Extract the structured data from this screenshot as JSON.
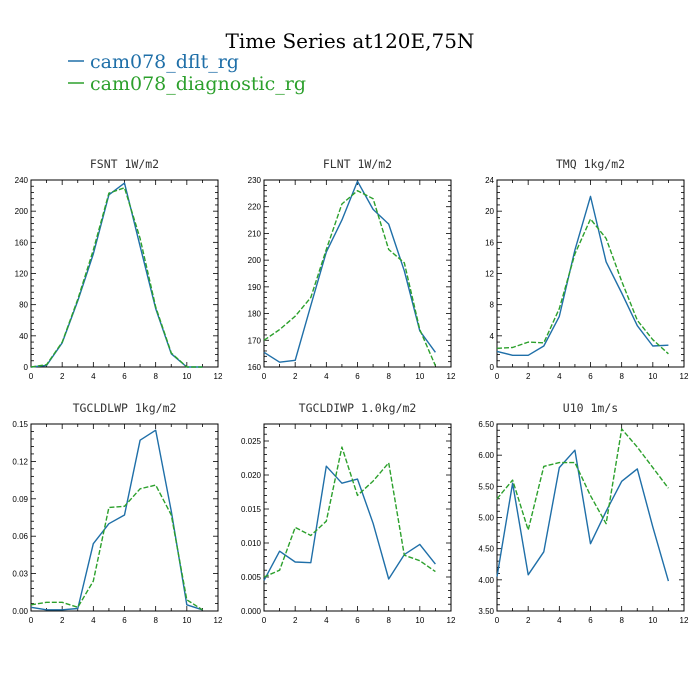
{
  "title": "Time Series at120E,75N",
  "colors": {
    "dflt": "#1f6fa8",
    "diag": "#2ca02c"
  },
  "legend": [
    {
      "name": "cam078_dflt_rg",
      "color": "#1f6fa8"
    },
    {
      "name": "cam078_diagnostic_rg",
      "color": "#2ca02c"
    }
  ],
  "chart_data": [
    {
      "type": "line",
      "title": "FSNT  1W/m2",
      "x": [
        0,
        1,
        2,
        3,
        4,
        5,
        6,
        7,
        8,
        9,
        10,
        11
      ],
      "xlim": [
        0,
        12
      ],
      "xticks": [
        0,
        2,
        4,
        6,
        8,
        10,
        12
      ],
      "xtick_labels": [
        "0",
        "2",
        "4",
        "6",
        "8",
        "10",
        "12"
      ],
      "ylim": [
        0,
        240
      ],
      "yticks": [
        0,
        40,
        80,
        120,
        160,
        200,
        240
      ],
      "ytick_labels": [
        "0",
        "40",
        "80",
        "120",
        "160",
        "200",
        "240"
      ],
      "series": [
        {
          "name": "cam078_dflt_rg",
          "values": [
            0,
            2,
            31,
            85,
            145,
            221,
            236,
            155,
            75,
            17,
            0,
            0
          ]
        },
        {
          "name": "cam078_diagnostic_rg",
          "values": [
            0,
            3,
            32,
            87,
            150,
            223,
            230,
            165,
            77,
            18,
            0,
            0
          ]
        }
      ]
    },
    {
      "type": "line",
      "title": "FLNT  1W/m2",
      "x": [
        0,
        1,
        2,
        3,
        4,
        5,
        6,
        7,
        8,
        9,
        10,
        11
      ],
      "xlim": [
        0,
        12
      ],
      "xticks": [
        0,
        2,
        4,
        6,
        8,
        10,
        12
      ],
      "xtick_labels": [
        "0",
        "2",
        "4",
        "6",
        "8",
        "10",
        "12"
      ],
      "ylim": [
        160,
        230
      ],
      "yticks": [
        160,
        170,
        180,
        190,
        200,
        210,
        220,
        230
      ],
      "ytick_labels": [
        "160",
        "170",
        "180",
        "190",
        "200",
        "210",
        "220",
        "230"
      ],
      "series": [
        {
          "name": "cam078_dflt_rg",
          "values": [
            165.5,
            161.8,
            162.5,
            183,
            203,
            215,
            229.5,
            219,
            213.5,
            196,
            173.5,
            165.5
          ]
        },
        {
          "name": "cam078_diagnostic_rg",
          "values": [
            170,
            174,
            179,
            186,
            204,
            221,
            226,
            223,
            204,
            199,
            174,
            160.5
          ]
        }
      ]
    },
    {
      "type": "line",
      "title": "TMQ  1kg/m2",
      "x": [
        0,
        1,
        2,
        3,
        4,
        5,
        6,
        7,
        8,
        9,
        10,
        11
      ],
      "xlim": [
        0,
        12
      ],
      "xticks": [
        0,
        2,
        4,
        6,
        8,
        10,
        12
      ],
      "xtick_labels": [
        "0",
        "2",
        "4",
        "6",
        "8",
        "10",
        "12"
      ],
      "ylim": [
        0,
        24
      ],
      "yticks": [
        0,
        4,
        8,
        12,
        16,
        20,
        24
      ],
      "ytick_labels": [
        "0",
        "4",
        "8",
        "12",
        "16",
        "20",
        "24"
      ],
      "series": [
        {
          "name": "cam078_dflt_rg",
          "values": [
            2.0,
            1.5,
            1.5,
            2.7,
            6.5,
            15.0,
            21.9,
            13.5,
            9.5,
            5.3,
            2.7,
            2.8
          ]
        },
        {
          "name": "cam078_diagnostic_rg",
          "values": [
            2.4,
            2.5,
            3.2,
            3.1,
            7.5,
            14.5,
            19.0,
            16.5,
            11.0,
            6.0,
            3.5,
            1.7
          ]
        }
      ]
    },
    {
      "type": "line",
      "title": "TGCLDLWP  1kg/m2",
      "x": [
        0,
        1,
        2,
        3,
        4,
        5,
        6,
        7,
        8,
        9,
        10,
        11
      ],
      "xlim": [
        0,
        12
      ],
      "xticks": [
        0,
        2,
        4,
        6,
        8,
        10,
        12
      ],
      "xtick_labels": [
        "0",
        "2",
        "4",
        "6",
        "8",
        "10",
        "12"
      ],
      "ylim": [
        0,
        0.15
      ],
      "yticks": [
        0,
        0.03,
        0.06,
        0.09,
        0.12,
        0.15
      ],
      "ytick_labels": [
        "0.00",
        "0.03",
        "0.06",
        "0.09",
        "0.12",
        "0.15"
      ],
      "series": [
        {
          "name": "cam078_dflt_rg",
          "values": [
            0.003,
            0.001,
            0.001,
            0.002,
            0.054,
            0.07,
            0.077,
            0.137,
            0.145,
            0.08,
            0.005,
            0.001
          ]
        },
        {
          "name": "cam078_diagnostic_rg",
          "values": [
            0.005,
            0.007,
            0.007,
            0.003,
            0.024,
            0.083,
            0.084,
            0.098,
            0.101,
            0.077,
            0.009,
            0.001
          ]
        }
      ]
    },
    {
      "type": "line",
      "title": "TGCLDIWP  1.0kg/m2",
      "x": [
        0,
        1,
        2,
        3,
        4,
        5,
        6,
        7,
        8,
        9,
        10,
        11
      ],
      "xlim": [
        0,
        12
      ],
      "xticks": [
        0,
        2,
        4,
        6,
        8,
        10,
        12
      ],
      "xtick_labels": [
        "0",
        "2",
        "4",
        "6",
        "8",
        "10",
        "12"
      ],
      "ylim": [
        0,
        0.0275
      ],
      "yticks": [
        0,
        0.005,
        0.01,
        0.015,
        0.02,
        0.025
      ],
      "ytick_labels": [
        "0.000",
        "0.005",
        "0.010",
        "0.015",
        "0.020",
        "0.025"
      ],
      "series": [
        {
          "name": "cam078_dflt_rg",
          "values": [
            0.0045,
            0.0088,
            0.0072,
            0.0071,
            0.0213,
            0.0188,
            0.0194,
            0.0129,
            0.0047,
            0.0083,
            0.0098,
            0.0069
          ]
        },
        {
          "name": "cam078_diagnostic_rg",
          "values": [
            0.005,
            0.006,
            0.0123,
            0.0111,
            0.0132,
            0.0241,
            0.017,
            0.0191,
            0.0218,
            0.0082,
            0.0074,
            0.0058
          ]
        }
      ]
    },
    {
      "type": "line",
      "title": "U10  1m/s",
      "x": [
        0,
        1,
        2,
        3,
        4,
        5,
        6,
        7,
        8,
        9,
        10,
        11
      ],
      "xlim": [
        0,
        12
      ],
      "xticks": [
        0,
        2,
        4,
        6,
        8,
        10,
        12
      ],
      "xtick_labels": [
        "0",
        "2",
        "4",
        "6",
        "8",
        "10",
        "12"
      ],
      "ylim": [
        3.5,
        6.5
      ],
      "yticks": [
        3.5,
        4.0,
        4.5,
        5.0,
        5.5,
        6.0,
        6.5
      ],
      "ytick_labels": [
        "3.50",
        "4.00",
        "4.50",
        "5.00",
        "5.50",
        "6.00",
        "6.50"
      ],
      "series": [
        {
          "name": "cam078_dflt_rg",
          "values": [
            4.05,
            5.55,
            4.08,
            4.45,
            5.8,
            6.08,
            4.58,
            5.1,
            5.58,
            5.78,
            4.85,
            3.98
          ]
        },
        {
          "name": "cam078_diagnostic_rg",
          "values": [
            5.3,
            5.6,
            4.8,
            5.82,
            5.88,
            5.88,
            5.35,
            4.9,
            6.42,
            6.13,
            5.8,
            5.47
          ]
        }
      ]
    }
  ]
}
